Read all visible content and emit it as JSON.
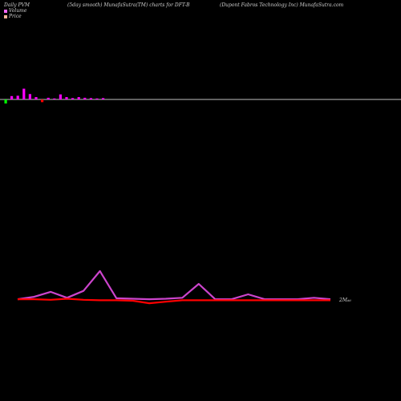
{
  "header": {
    "left": "Daily PVM",
    "center": "(5day smooth) MunafaSutra(TM) charts for DFT-B",
    "right": "(Dupont Fabros Technology Inc) MunafaSutra.com"
  },
  "legend": {
    "volume_label": "Volume",
    "volume_color": "#ff66ff",
    "price_label": "Price",
    "price_color": "#ffb499"
  },
  "chart_data": [
    {
      "type": "bar",
      "name": "volume-bars",
      "values": [
        1.0,
        1.1,
        3.2,
        1.6,
        0.7,
        -0.8,
        0.5,
        0.3,
        1.5,
        0.7,
        0.4,
        0.7,
        0.5,
        0.4,
        0.3,
        0.4
      ],
      "colors": [
        "#ff00ff",
        "#ff00ff",
        "#ff00ff",
        "#ff00ff",
        "#ff00ff",
        "#ff0000",
        "#ff00ff",
        "#ff00ff",
        "#ff00ff",
        "#ff00ff",
        "#ff00ff",
        "#ff00ff",
        "#ff00ff",
        "#ff00ff",
        "#ff00ff",
        "#ff00ff"
      ],
      "extra_bar": {
        "value": -1.2,
        "color": "#00ff00"
      },
      "baseline_color": "#ffffff"
    },
    {
      "type": "line",
      "name": "pvm-lines",
      "x": [
        0,
        1,
        2,
        3,
        4,
        5,
        6,
        7,
        8,
        9,
        10,
        11,
        12,
        13,
        14,
        15,
        16,
        17,
        18,
        19
      ],
      "series": [
        {
          "values": [
            0.3,
            0.8,
            1.8,
            0.6,
            2.0,
            6.0,
            0.5,
            0.4,
            0.3,
            0.4,
            0.6,
            3.4,
            0.3,
            0.3,
            1.3,
            0.3,
            0.3,
            0.3,
            0.6,
            0.3
          ],
          "color": "#cc44cc"
        },
        {
          "values": [
            0.3,
            0.3,
            0.2,
            0.4,
            0.2,
            0.1,
            0.1,
            0.0,
            -0.5,
            -0.2,
            0.1,
            0.1,
            0.1,
            0.1,
            0.1,
            0.1,
            0.1,
            0.1,
            0.1,
            0.1
          ],
          "color": "#ff0000"
        }
      ],
      "last_label": "2M₆₆",
      "ylim": [
        -1,
        7
      ]
    }
  ]
}
